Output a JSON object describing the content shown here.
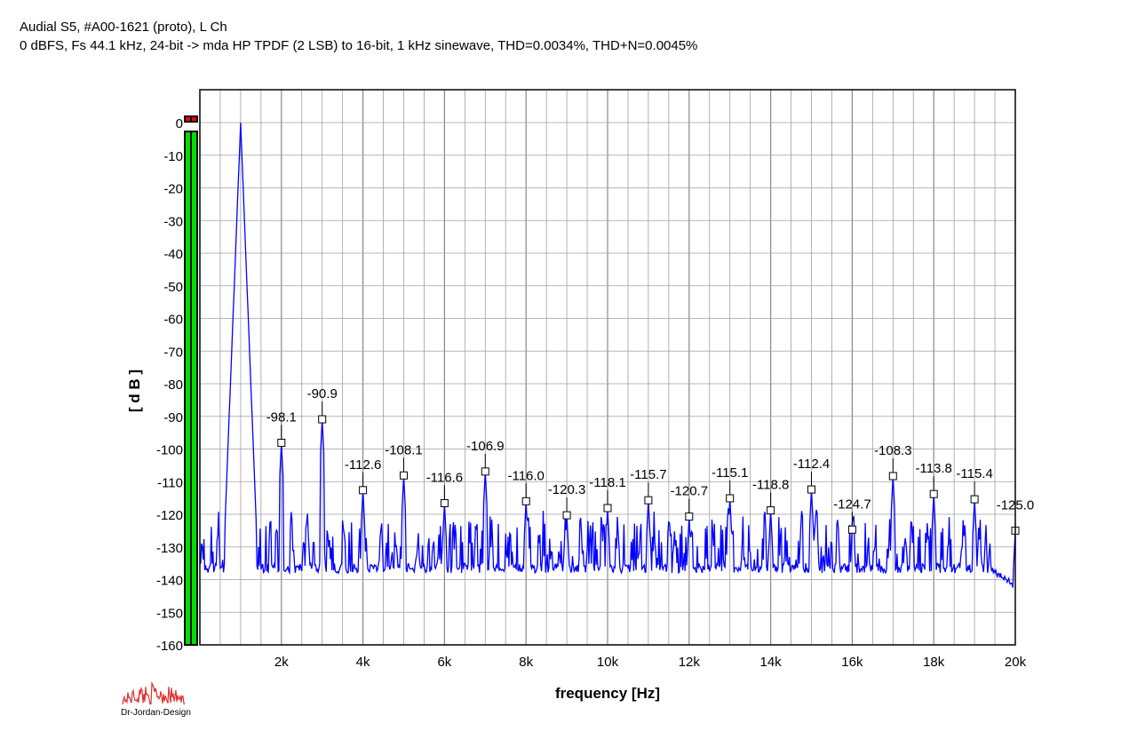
{
  "header": {
    "title": "Audial S5, #A00-1621 (proto), L Ch",
    "subtitle": "0 dBFS, Fs 44.1 kHz, 24-bit -> mda HP TPDF (2 LSB) to 16-bit, 1 kHz sinewave, THD=0.0034%, THD+N=0.0045%"
  },
  "logo": {
    "text": "Dr-Jordan-Design"
  },
  "colors": {
    "trace": "#0000ff",
    "grid": "#a0a0a0",
    "meter_green": "#00dd00",
    "meter_red": "#ff0000",
    "logo_red": "#e03030"
  },
  "chart_data": {
    "type": "line",
    "title": "Audial S5, #A00-1621 (proto), L Ch",
    "subtitle": "0 dBFS, Fs 44.1 kHz, 24-bit -> mda HP TPDF (2 LSB) to 16-bit, 1 kHz sinewave, THD=0.0034%, THD+N=0.0045%",
    "xlabel": "frequency [Hz]",
    "ylabel": "[ d B ]",
    "xlim": [
      0,
      20000
    ],
    "ylim": [
      -160,
      0
    ],
    "grid": true,
    "x_ticks": [
      2000,
      4000,
      6000,
      8000,
      10000,
      12000,
      14000,
      16000,
      18000,
      20000
    ],
    "x_tick_labels": [
      "2k",
      "4k",
      "6k",
      "8k",
      "10k",
      "12k",
      "14k",
      "16k",
      "18k",
      "20k"
    ],
    "y_ticks": [
      0,
      -10,
      -20,
      -30,
      -40,
      -50,
      -60,
      -70,
      -80,
      -90,
      -100,
      -110,
      -120,
      -130,
      -140,
      -150,
      -160
    ],
    "y_tick_labels": [
      "0",
      "-10",
      "-20",
      "-30",
      "-40",
      "-50",
      "-60",
      "-70",
      "-80",
      "-90",
      "-100",
      "-110",
      "-120",
      "-130",
      "-140",
      "-150",
      "-160"
    ],
    "fundamental": {
      "x": 1000,
      "y": 0
    },
    "noise_floor": -138,
    "noise_top": -117,
    "markers": [
      {
        "x": 2000,
        "y": -98.1,
        "label": "-98.1"
      },
      {
        "x": 3000,
        "y": -90.9,
        "label": "-90.9"
      },
      {
        "x": 4000,
        "y": -112.6,
        "label": "-112.6"
      },
      {
        "x": 5000,
        "y": -108.1,
        "label": "-108.1"
      },
      {
        "x": 6000,
        "y": -116.6,
        "label": "-116.6"
      },
      {
        "x": 7000,
        "y": -106.9,
        "label": "-106.9"
      },
      {
        "x": 8000,
        "y": -116.0,
        "label": "-116.0"
      },
      {
        "x": 9000,
        "y": -120.3,
        "label": "-120.3"
      },
      {
        "x": 10000,
        "y": -118.1,
        "label": "-118.1"
      },
      {
        "x": 11000,
        "y": -115.7,
        "label": "-115.7"
      },
      {
        "x": 12000,
        "y": -120.7,
        "label": "-120.7"
      },
      {
        "x": 13000,
        "y": -115.1,
        "label": "-115.1"
      },
      {
        "x": 14000,
        "y": -118.8,
        "label": "-118.8"
      },
      {
        "x": 15000,
        "y": -112.4,
        "label": "-112.4"
      },
      {
        "x": 16000,
        "y": -124.7,
        "label": "-124.7"
      },
      {
        "x": 17000,
        "y": -108.3,
        "label": "-108.3"
      },
      {
        "x": 18000,
        "y": -113.8,
        "label": "-113.8"
      },
      {
        "x": 19000,
        "y": -115.4,
        "label": "-115.4"
      },
      {
        "x": 20000,
        "y": -125.0,
        "label": "-125.0"
      }
    ],
    "meter": {
      "level_db": 0,
      "overload": true
    }
  }
}
